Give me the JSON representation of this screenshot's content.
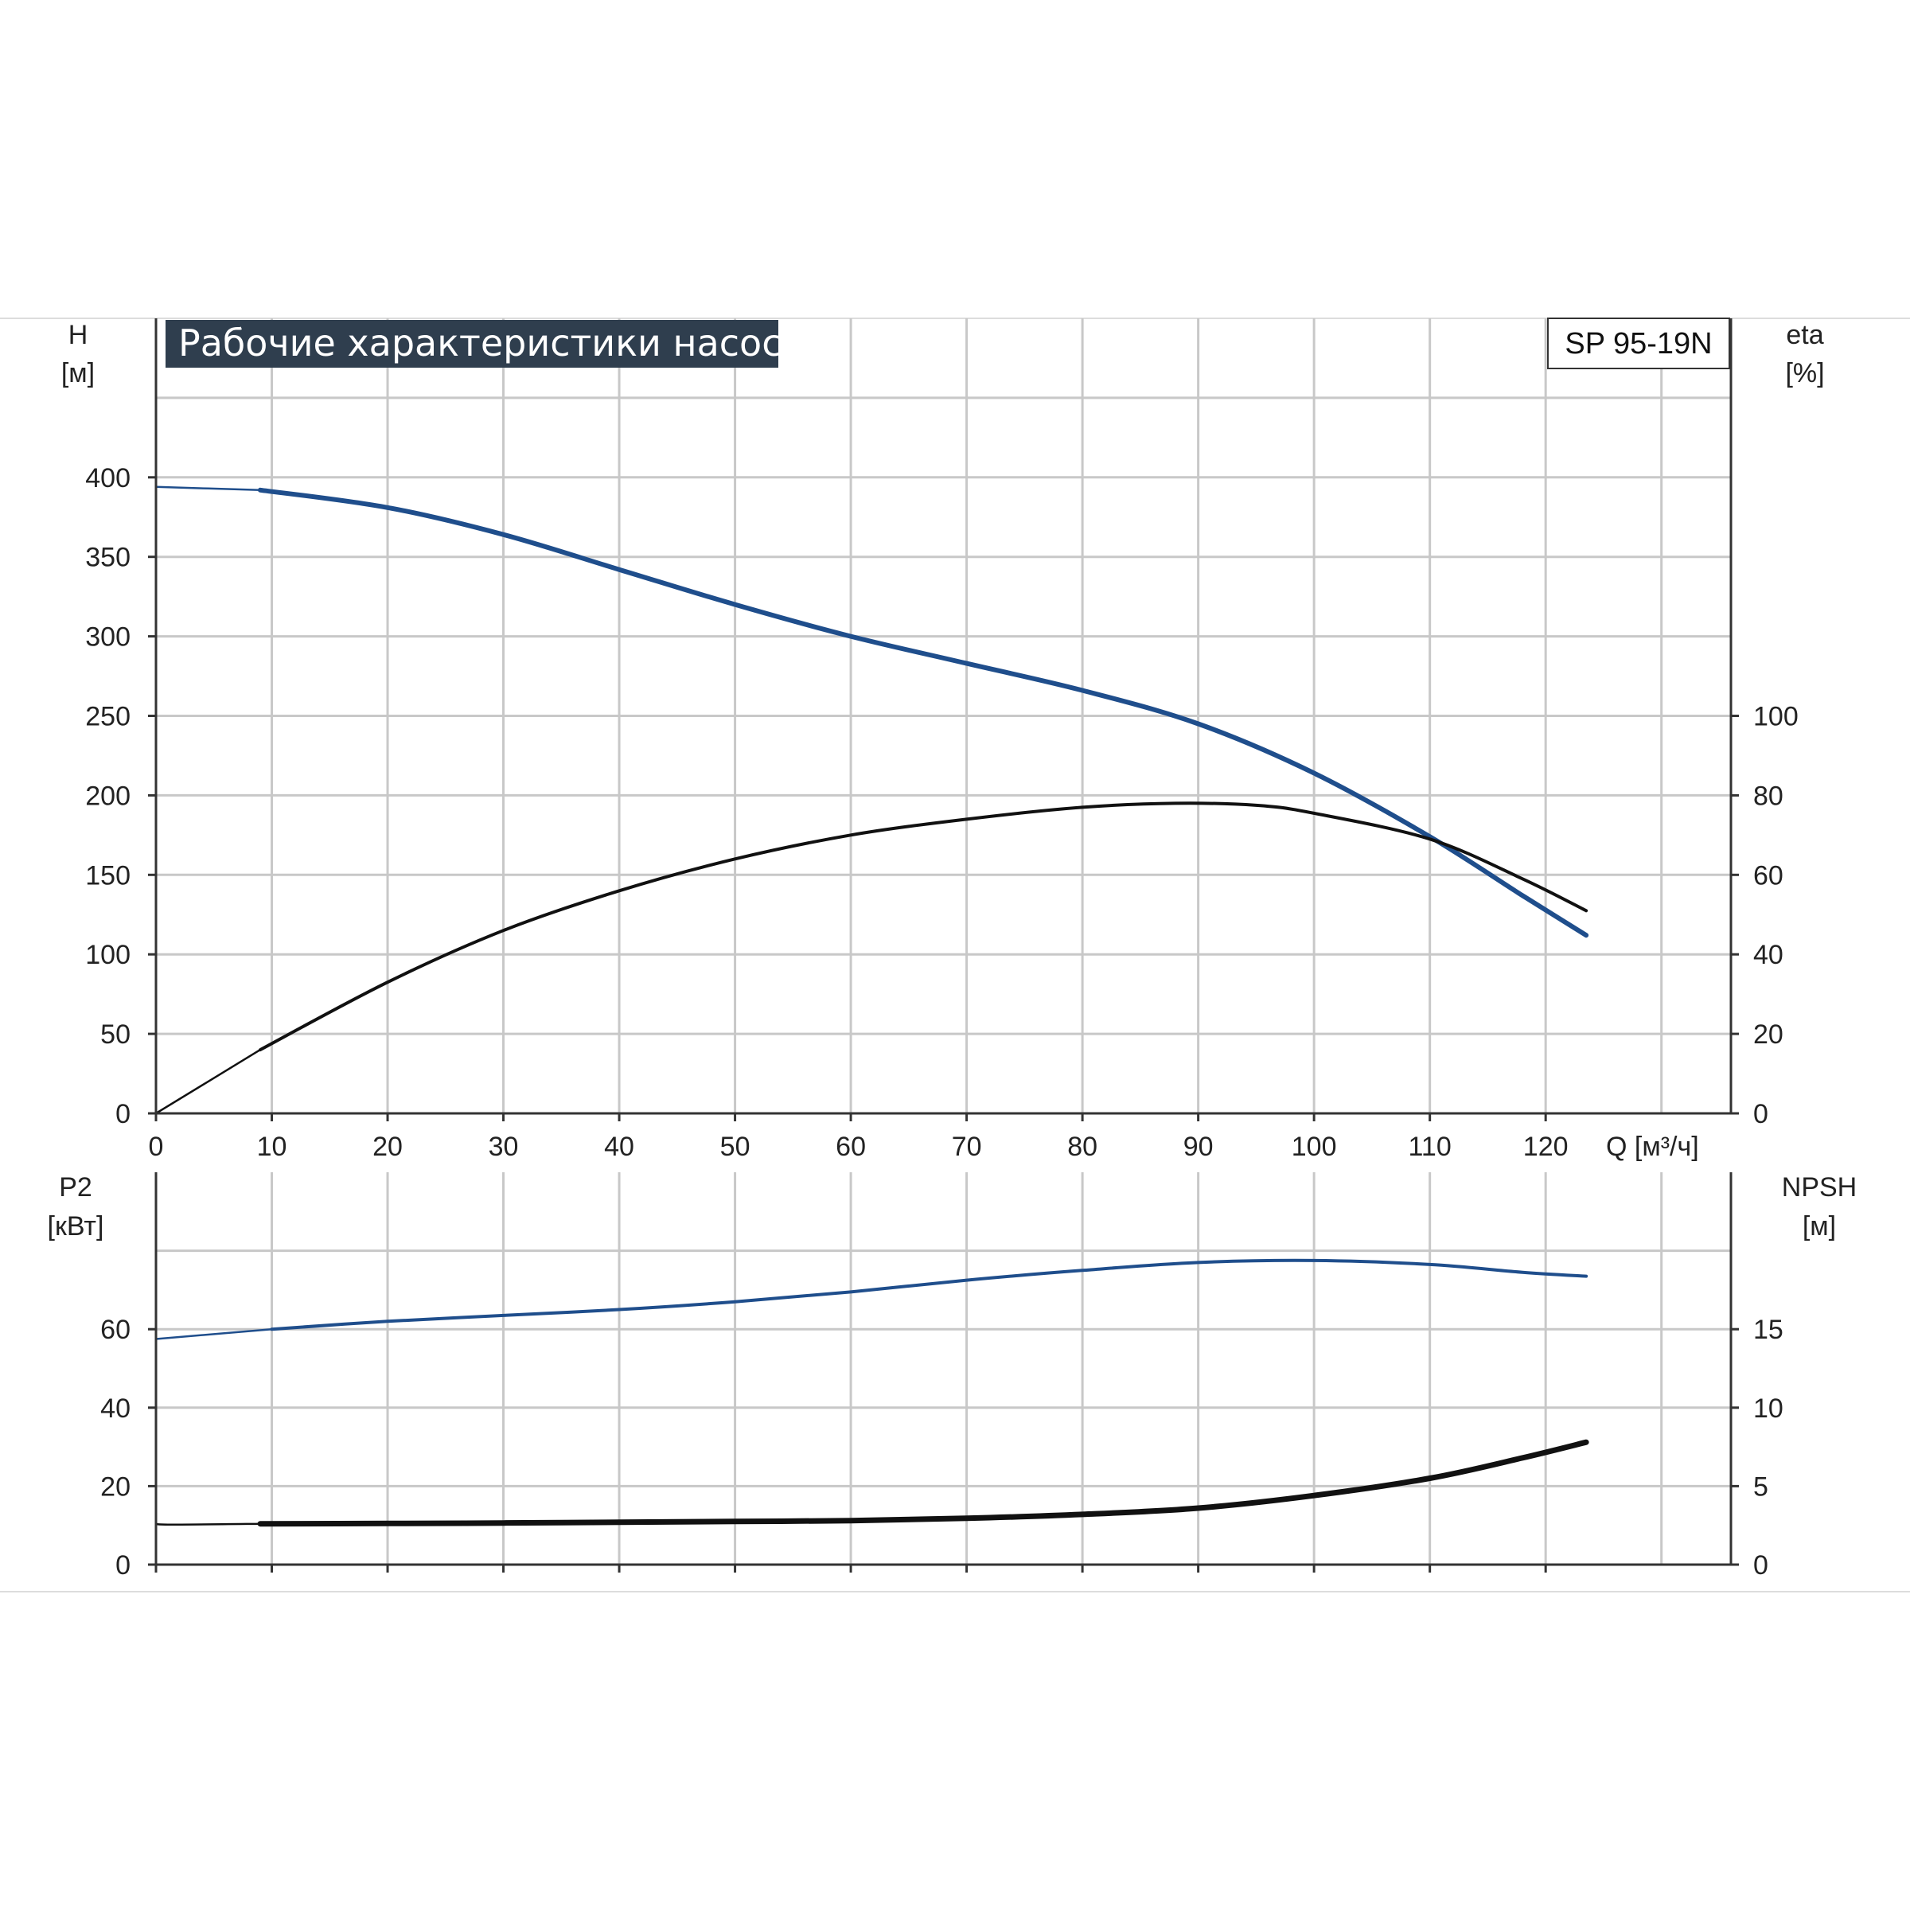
{
  "title": "Рабочие характеристики насоса",
  "model": "SP 95-19N",
  "colors": {
    "blue": "#1f4e8c",
    "black": "#111111",
    "grid": "#c8c8c8",
    "title_bg": "#2f3e4e"
  },
  "chart_data": [
    {
      "type": "line",
      "panel": "top",
      "x_axis": {
        "label": "Q [м³/ч]",
        "min": 0,
        "max": 136,
        "ticks": [
          "0",
          "10",
          "20",
          "30",
          "40",
          "50",
          "60",
          "70",
          "80",
          "90",
          "100",
          "110",
          "120"
        ]
      },
      "y_axis_left": {
        "label_line1": "H",
        "label_line2": "[м]",
        "min": 0,
        "max": 500,
        "ticks": [
          "0",
          "50",
          "100",
          "150",
          "200",
          "250",
          "300",
          "350",
          "400"
        ]
      },
      "y_axis_right": {
        "label_line1": "eta",
        "label_line2": "[%]",
        "min": 0,
        "max": 200,
        "ticks": [
          "0",
          "20",
          "40",
          "60",
          "80",
          "100"
        ]
      },
      "grid": true,
      "series": [
        {
          "axis": "left",
          "color": "blue",
          "x": [
            0,
            9,
            20,
            30,
            40,
            50,
            60,
            70,
            80,
            90,
            100,
            110,
            118,
            123.5
          ],
          "y": [
            394,
            392,
            381,
            364,
            342,
            320,
            300,
            283,
            266,
            245,
            214,
            174,
            137,
            112
          ]
        },
        {
          "axis": "right",
          "color": "black",
          "x": [
            0,
            9,
            20,
            30,
            40,
            50,
            60,
            70,
            80,
            88,
            95,
            100,
            110,
            118,
            123.5
          ],
          "y": [
            0,
            16,
            33,
            46,
            56,
            64,
            70,
            74,
            77,
            78,
            77.5,
            75.5,
            69,
            59,
            51
          ]
        }
      ]
    },
    {
      "type": "line",
      "panel": "bottom",
      "y_axis_left": {
        "label_line1": "P2",
        "label_line2": "[кВт]",
        "min": 0,
        "max": 100,
        "ticks": [
          "0",
          "20",
          "40",
          "60"
        ]
      },
      "y_axis_right": {
        "label_line1": "NPSH",
        "label_line2": "[м]",
        "min": 0,
        "max": 25,
        "ticks": [
          "0",
          "5",
          "10",
          "15"
        ]
      },
      "grid": true,
      "series": [
        {
          "axis": "left",
          "color": "blue",
          "x": [
            0,
            10,
            20,
            30,
            40,
            50,
            60,
            70,
            80,
            90,
            100,
            110,
            118,
            123.5
          ],
          "y": [
            57.5,
            60,
            62,
            63.5,
            65,
            67,
            69.5,
            72.5,
            75,
            77,
            77.5,
            76.5,
            74.5,
            73.5
          ]
        },
        {
          "axis": "right",
          "color": "black",
          "x": [
            0,
            1,
            9,
            20,
            30,
            40,
            50,
            60,
            70,
            80,
            90,
            100,
            110,
            118,
            123.5
          ],
          "y": [
            2.65,
            2.55,
            2.6,
            2.62,
            2.65,
            2.7,
            2.75,
            2.8,
            2.95,
            3.2,
            3.6,
            4.4,
            5.5,
            6.8,
            7.8
          ]
        }
      ]
    }
  ]
}
